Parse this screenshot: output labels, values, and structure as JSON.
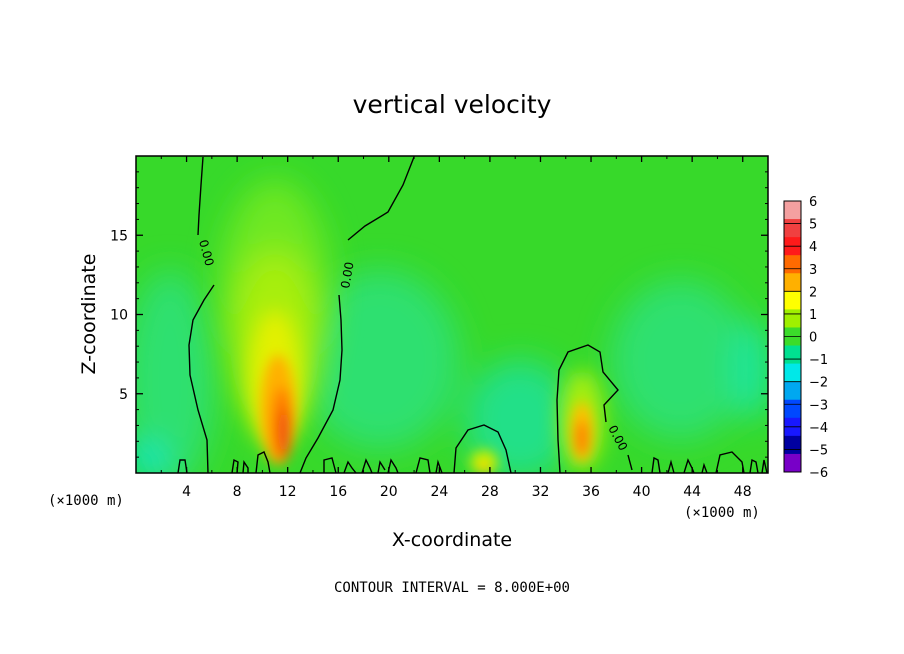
{
  "chart_data": {
    "type": "heatmap",
    "title": "vertical velocity",
    "xlabel": "X-coordinate",
    "ylabel": "Z-coordinate",
    "x_unit": "(×1000 m)",
    "x_unit_right": "(×1000 m)",
    "xlim": [
      0,
      50
    ],
    "ylim": [
      0,
      20
    ],
    "x_ticks": [
      4,
      8,
      12,
      16,
      20,
      24,
      28,
      32,
      36,
      40,
      44,
      48
    ],
    "y_ticks": [
      5,
      10,
      15
    ],
    "contour_interval_text": "CONTOUR INTERVAL = 8.000E+00",
    "contour_labels": [
      "0.00",
      "0.00",
      "0.00"
    ],
    "colorbar": {
      "levels": [
        6,
        5,
        4,
        3,
        2,
        1,
        0,
        -1,
        -2,
        -3,
        -4,
        -5,
        -6
      ],
      "colors": [
        "#f4a0a0",
        "#f04040",
        "#ff1a1a",
        "#ff6a00",
        "#ffb000",
        "#ffff00",
        "#9ff000",
        "#3bdc2a",
        "#00e090",
        "#00e8e8",
        "#00a8f0",
        "#0048ff",
        "#1818ff",
        "#0000a0",
        "#7800c8"
      ]
    },
    "features": [
      {
        "name": "main updraft",
        "x_center": 11.5,
        "z_center": 3,
        "peak": 4
      },
      {
        "name": "secondary updraft",
        "x_center": 35,
        "z_center": 3,
        "peak": 3
      },
      {
        "name": "small updraft",
        "x_center": 27.5,
        "z_center": 0.5,
        "peak": 1
      }
    ]
  }
}
